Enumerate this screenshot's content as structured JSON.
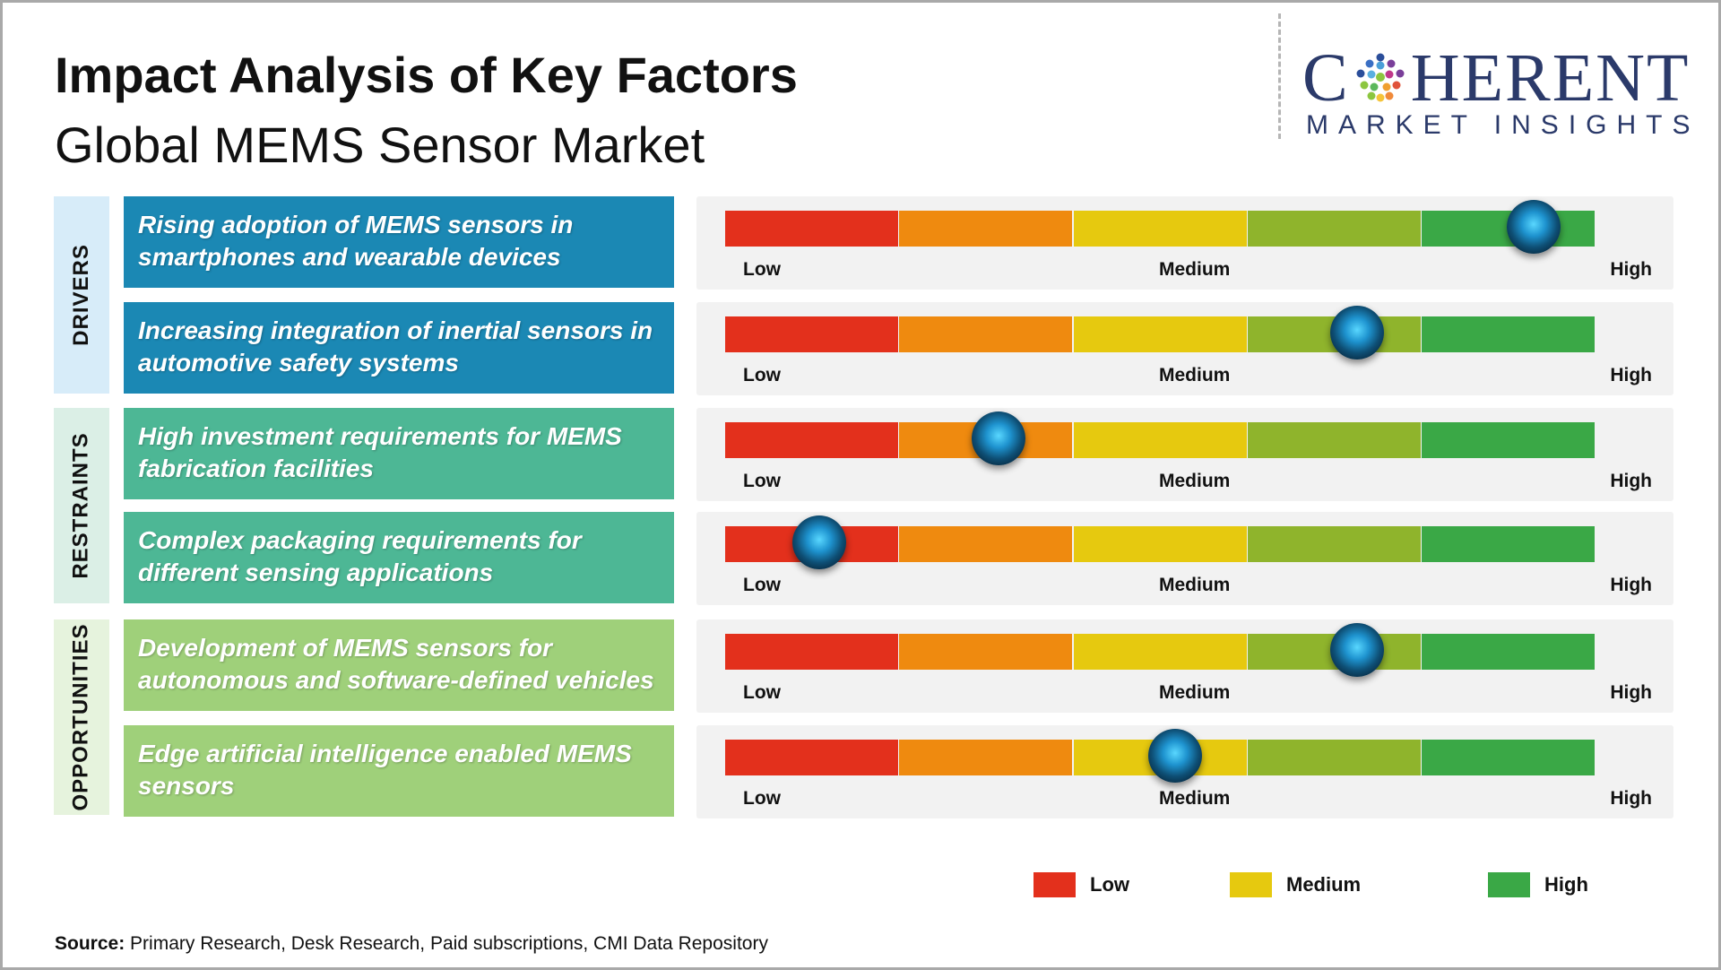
{
  "title": "Impact Analysis of Key Factors",
  "subtitle": "Global MEMS Sensor Market",
  "logo": {
    "word_left": "C",
    "word_right": "HERENT",
    "subline": "MARKET INSIGHTS",
    "brand_color": "#2b3a6a"
  },
  "scale": {
    "low_label": "Low",
    "medium_label": "Medium",
    "high_label": "High",
    "segment_colors": [
      "#e3301c",
      "#ef8a0f",
      "#e6c90f",
      "#8fb42c",
      "#3aa846"
    ]
  },
  "categories": [
    {
      "label": "DRIVERS",
      "color": "#d7ecf9"
    },
    {
      "label": "RESTRAINTS",
      "color": "#dbefe6"
    },
    {
      "label": "OPPORTUNITIES",
      "color": "#e6f3dd"
    }
  ],
  "factors": [
    {
      "category": "DRIVERS",
      "text": "Rising adoption of MEMS sensors in smartphones and wearable devices",
      "impact": 0.93,
      "color": "#1b88b4"
    },
    {
      "category": "DRIVERS",
      "text": "Increasing integration of inertial sensors in automotive safety systems",
      "impact": 0.727,
      "color": "#1b88b4"
    },
    {
      "category": "RESTRAINTS",
      "text": "High investment requirements for MEMS fabrication facilities",
      "impact": 0.314,
      "color": "#4db795"
    },
    {
      "category": "RESTRAINTS",
      "text": "Complex packaging requirements for different sensing applications",
      "impact": 0.108,
      "color": "#4db795"
    },
    {
      "category": "OPPORTUNITIES",
      "text": "Development of MEMS sensors for autonomous and software-defined vehicles",
      "impact": 0.727,
      "color": "#9fd07a"
    },
    {
      "category": "OPPORTUNITIES",
      "text": "Edge artificial intelligence enabled MEMS sensors",
      "impact": 0.518,
      "color": "#9fd07a"
    }
  ],
  "legend": [
    {
      "label": "Low",
      "color": "#e3301c"
    },
    {
      "label": "Medium",
      "color": "#e6c90f"
    },
    {
      "label": "High",
      "color": "#3aa846"
    }
  ],
  "source": {
    "label": "Source:",
    "text": "Primary Research, Desk Research, Paid subscriptions, CMI Data Repository"
  }
}
